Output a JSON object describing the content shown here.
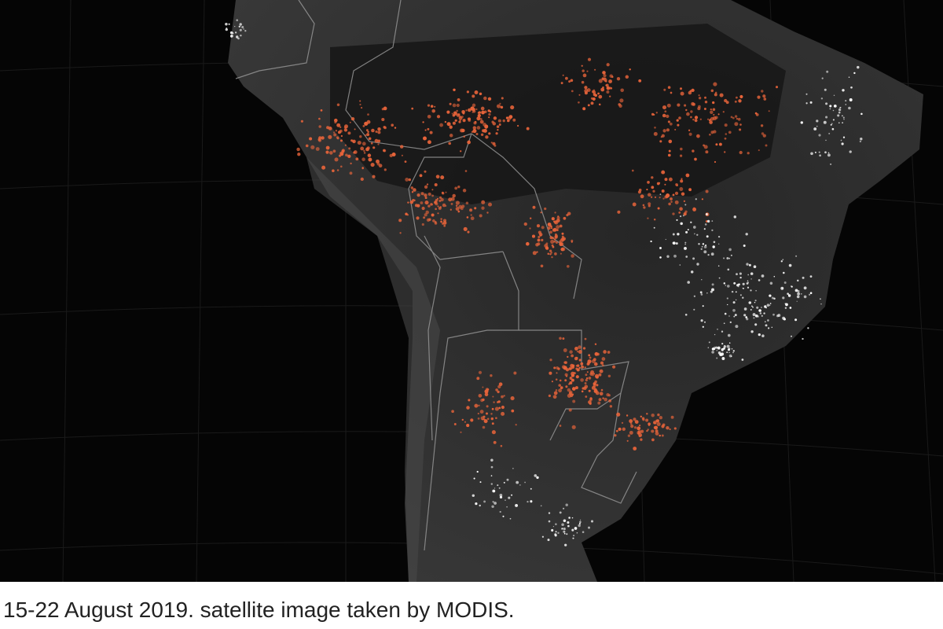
{
  "caption": "15-22 August 2019. satellite image taken by MODIS."
}
